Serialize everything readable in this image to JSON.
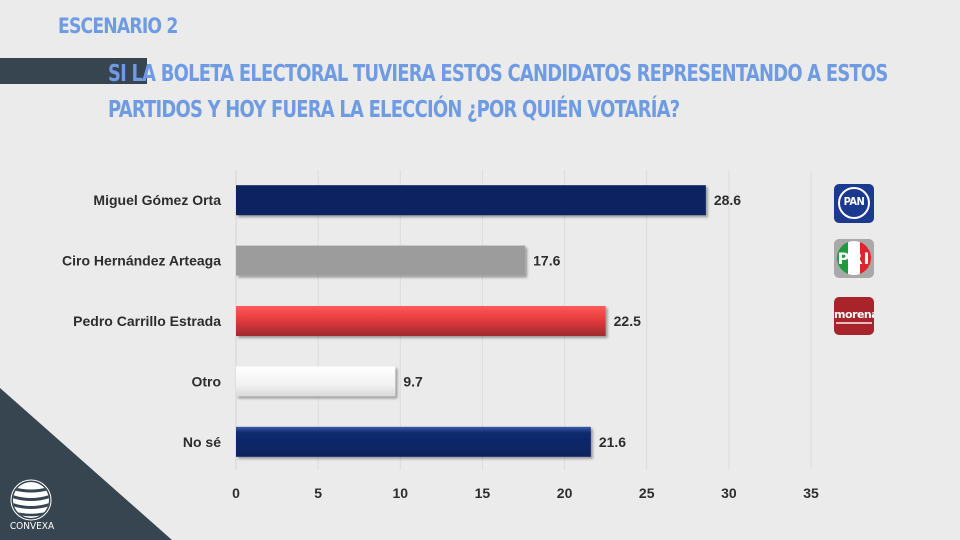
{
  "header": {
    "scenario": "ESCENARIO 2",
    "question_line1": "SI LA BOLETA ELECTORAL TUVIERA ESTOS CANDIDATOS REPRESENTANDO A ESTOS",
    "question_line2": "PARTIDOS Y HOY FUERA LA ELECCIÓN ¿POR QUIÉN VOTARÍA?"
  },
  "brand": {
    "name": "CONVEXA"
  },
  "parties": [
    {
      "name": "PAN",
      "icon": "pan-logo-icon",
      "color": "#1b3a8f"
    },
    {
      "name": "PRI",
      "icon": "pri-logo-icon",
      "color": "#a9a9a9"
    },
    {
      "name": "morena",
      "icon": "morena-logo-icon",
      "color": "#a8232a"
    }
  ],
  "colors": {
    "title": "#6f9be3",
    "band": "#36454f",
    "background": "#ebebeb"
  },
  "chart_data": {
    "type": "bar",
    "orientation": "horizontal",
    "title": "",
    "xlabel": "",
    "ylabel": "",
    "categories": [
      "Miguel Gómez Orta",
      "Ciro Hernández Arteaga",
      "Pedro Carrillo Estrada",
      "Otro",
      "No sé"
    ],
    "values": [
      28.6,
      17.6,
      22.5,
      9.7,
      21.6
    ],
    "value_labels": [
      "28.6",
      "17.6",
      "22.5",
      "9.7",
      "21.6"
    ],
    "bar_colors": [
      "#0b2161",
      "#9c9c9c",
      "#e03a3e",
      "#f2f2f2",
      "#0f2a6e"
    ],
    "xlim": [
      0,
      35
    ],
    "xticks": [
      0,
      5,
      10,
      15,
      20,
      25,
      30,
      35
    ],
    "xtick_labels": [
      "0",
      "5",
      "10",
      "15",
      "20",
      "25",
      "30",
      "35"
    ],
    "grid": true,
    "legend": "none"
  }
}
